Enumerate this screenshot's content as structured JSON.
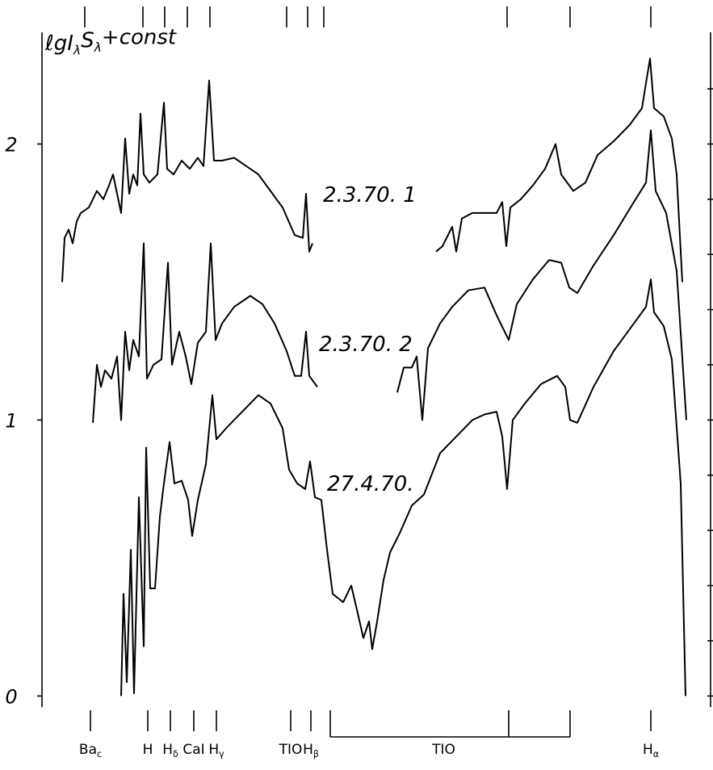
{
  "chart_data": {
    "type": "line",
    "ylabel_parts": [
      {
        "text": "ℓgI",
        "sub": "λ"
      },
      {
        "text": "S",
        "sub": "λ"
      },
      {
        "text": "+const"
      }
    ],
    "xlim": [
      52,
      880
    ],
    "ylim": [
      -0.04,
      2.44
    ],
    "yticks": [
      0,
      1,
      2
    ],
    "minor_yticks": [
      0,
      0.2,
      0.4,
      0.6,
      0.8,
      1,
      1.2,
      1.4,
      1.6,
      1.8,
      2,
      2.2
    ],
    "color": "#000000",
    "top_marks": [
      105,
      177,
      204,
      232,
      260,
      355,
      381,
      401,
      628,
      706,
      806
    ],
    "line_labels": [
      {
        "text": "Ba",
        "sub": "c",
        "x": 112
      },
      {
        "text": "H",
        "x": 183
      },
      {
        "text": "H",
        "sub": "δ",
        "x": 211
      },
      {
        "text": "CaI",
        "x": 240
      },
      {
        "text": "H",
        "sub": "γ",
        "x": 268
      },
      {
        "text": "TIO",
        "x": 360
      },
      {
        "text": "H",
        "sub": "β",
        "x": 385
      },
      {
        "text": "H",
        "sub": "α",
        "x": 806
      }
    ],
    "bands": [
      {
        "text": "TIO",
        "xlim": [
          409,
          706
        ],
        "mark": 630
      }
    ],
    "series": [
      {
        "name": "2.3.70. 1",
        "x": [
          77,
          80,
          85,
          90,
          95,
          100,
          110,
          115,
          120,
          128,
          135,
          140,
          145,
          150,
          155,
          160,
          165,
          170,
          174,
          178,
          185,
          195,
          203,
          207,
          215,
          225,
          235,
          245,
          252,
          259,
          265,
          275,
          290,
          305,
          320,
          335,
          350,
          365,
          375,
          379,
          383,
          387,
          null,
          540,
          548,
          560,
          565,
          572,
          585,
          600,
          615,
          622,
          627,
          632,
          645,
          660,
          675,
          688,
          695,
          710,
          725,
          740,
          760,
          780,
          795,
          805,
          810,
          822,
          832,
          838,
          845
        ],
        "values": [
          1.5,
          1.66,
          1.69,
          1.64,
          1.72,
          1.75,
          1.77,
          1.8,
          1.83,
          1.8,
          1.85,
          1.89,
          1.82,
          1.75,
          2.02,
          1.82,
          1.89,
          1.85,
          2.11,
          1.89,
          1.86,
          1.89,
          2.15,
          1.91,
          1.89,
          1.94,
          1.91,
          1.95,
          1.92,
          2.23,
          1.94,
          1.94,
          1.95,
          1.92,
          1.89,
          1.83,
          1.77,
          1.67,
          1.66,
          1.82,
          1.61,
          1.64,
          null,
          1.61,
          1.63,
          1.7,
          1.61,
          1.73,
          1.75,
          1.75,
          1.75,
          1.79,
          1.63,
          1.77,
          1.8,
          1.85,
          1.91,
          2.0,
          1.89,
          1.83,
          1.86,
          1.96,
          2.01,
          2.07,
          2.13,
          2.31,
          2.13,
          2.1,
          2.02,
          1.89,
          1.5
        ]
      },
      {
        "name": "2.3.70. 2",
        "x": [
          115,
          120,
          125,
          130,
          138,
          145,
          150,
          155,
          160,
          165,
          172,
          178,
          182,
          190,
          200,
          208,
          213,
          222,
          230,
          237,
          245,
          255,
          261,
          267,
          275,
          290,
          310,
          325,
          340,
          355,
          365,
          373,
          379,
          383,
          393,
          null,
          492,
          500,
          510,
          516,
          523,
          530,
          545,
          560,
          580,
          600,
          615,
          630,
          640,
          660,
          680,
          695,
          705,
          715,
          735,
          760,
          785,
          800,
          806,
          812,
          825,
          838,
          850
        ],
        "values": [
          0.99,
          1.2,
          1.12,
          1.18,
          1.15,
          1.23,
          1.0,
          1.32,
          1.18,
          1.29,
          1.23,
          1.64,
          1.15,
          1.2,
          1.22,
          1.57,
          1.2,
          1.32,
          1.23,
          1.13,
          1.28,
          1.32,
          1.64,
          1.29,
          1.35,
          1.41,
          1.45,
          1.42,
          1.35,
          1.25,
          1.16,
          1.16,
          1.32,
          1.16,
          1.12,
          null,
          1.1,
          1.19,
          1.19,
          1.23,
          1.0,
          1.26,
          1.35,
          1.41,
          1.47,
          1.48,
          1.38,
          1.29,
          1.42,
          1.51,
          1.58,
          1.57,
          1.48,
          1.46,
          1.56,
          1.67,
          1.79,
          1.86,
          2.05,
          1.83,
          1.75,
          1.54,
          1.0
        ]
      },
      {
        "name": "27.4.70.",
        "x": [
          150,
          153,
          157,
          162,
          166,
          172,
          178,
          181,
          186,
          192,
          198,
          203,
          210,
          216,
          225,
          233,
          238,
          245,
          255,
          263,
          268,
          280,
          300,
          320,
          335,
          350,
          358,
          368,
          378,
          384,
          390,
          398,
          405,
          412,
          425,
          435,
          443,
          450,
          457,
          461,
          467,
          475,
          483,
          495,
          510,
          525,
          545,
          565,
          585,
          600,
          615,
          622,
          628,
          635,
          650,
          670,
          690,
          700,
          706,
          715,
          735,
          760,
          785,
          800,
          806,
          810,
          822,
          832,
          843,
          849
        ],
        "values": [
          0.0,
          0.37,
          0.05,
          0.53,
          0.01,
          0.72,
          0.18,
          0.9,
          0.39,
          0.39,
          0.65,
          0.77,
          0.92,
          0.77,
          0.78,
          0.71,
          0.58,
          0.71,
          0.84,
          1.09,
          0.93,
          0.97,
          1.03,
          1.09,
          1.06,
          0.97,
          0.82,
          0.77,
          0.75,
          0.85,
          0.72,
          0.71,
          0.53,
          0.37,
          0.34,
          0.4,
          0.3,
          0.21,
          0.27,
          0.17,
          0.27,
          0.42,
          0.52,
          0.59,
          0.69,
          0.73,
          0.88,
          0.94,
          1.0,
          1.02,
          1.03,
          0.94,
          0.75,
          1.0,
          1.06,
          1.13,
          1.16,
          1.12,
          1.0,
          0.99,
          1.12,
          1.25,
          1.35,
          1.41,
          1.51,
          1.39,
          1.34,
          1.22,
          0.77,
          0.0
        ]
      }
    ]
  }
}
